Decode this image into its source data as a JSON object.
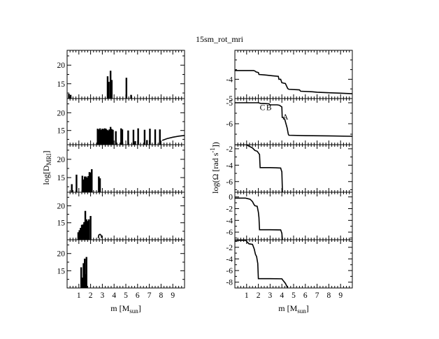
{
  "figure": {
    "title": "15sm_rot_mri",
    "xlabel": "m [M",
    "xlabel_sub": "sun",
    "xlabel_end": "]",
    "left_ylabel_main": "log[D",
    "left_ylabel_sub": "MRI",
    "left_ylabel_end": "]",
    "right_ylabel_main": "log(Ω [rad s",
    "right_ylabel_sup": "-1",
    "right_ylabel_end": "])"
  },
  "chart_data": [
    {
      "panel": "left-1",
      "type": "bar",
      "xlim": [
        0,
        10
      ],
      "ylim": [
        11,
        24
      ],
      "yticks": [
        15,
        20
      ],
      "xtick_labels": [],
      "spikes": [
        [
          0.15,
          12.3
        ],
        [
          0.3,
          12
        ],
        [
          3.45,
          17
        ],
        [
          3.55,
          15.5
        ],
        [
          3.7,
          18.5
        ],
        [
          3.8,
          16
        ],
        [
          5.05,
          16.6
        ],
        [
          5.45,
          12
        ]
      ]
    },
    {
      "panel": "left-2",
      "type": "bar",
      "xlim": [
        0,
        10
      ],
      "ylim": [
        11,
        24
      ],
      "yticks": [
        15,
        20
      ],
      "xtick_labels": [],
      "spikes": [
        [
          2.6,
          15.5
        ],
        [
          2.7,
          15.3
        ],
        [
          2.8,
          15.6
        ],
        [
          2.9,
          15.2
        ],
        [
          3.0,
          15.5
        ],
        [
          3.1,
          15.4
        ],
        [
          3.2,
          15.6
        ],
        [
          3.3,
          15.5
        ],
        [
          3.4,
          15.2
        ],
        [
          3.5,
          15
        ],
        [
          3.6,
          15.3
        ],
        [
          3.7,
          16
        ],
        [
          3.8,
          15.4
        ],
        [
          3.9,
          15.2
        ],
        [
          4.15,
          14.8
        ],
        [
          4.6,
          15.6
        ],
        [
          4.7,
          15.3
        ],
        [
          5.2,
          15
        ],
        [
          5.65,
          15.2
        ],
        [
          5.8,
          12
        ],
        [
          6.05,
          15.6
        ],
        [
          6.6,
          15.2
        ],
        [
          6.8,
          12.3
        ],
        [
          7.05,
          15.5
        ],
        [
          7.5,
          15.3
        ],
        [
          7.9,
          15.3
        ]
      ],
      "curve": [
        [
          8.1,
          12.2
        ],
        [
          8.5,
          12.7
        ],
        [
          9.0,
          13.1
        ],
        [
          9.5,
          13.4
        ],
        [
          10.0,
          13.6
        ]
      ]
    },
    {
      "panel": "left-3",
      "type": "bar",
      "xlim": [
        0,
        10
      ],
      "ylim": [
        11,
        24
      ],
      "yticks": [
        15,
        20
      ],
      "xtick_labels": [],
      "spikes": [
        [
          0.4,
          13.2
        ],
        [
          0.8,
          15.8
        ],
        [
          1.3,
          15.5
        ],
        [
          1.4,
          14.5
        ],
        [
          1.5,
          15.3
        ],
        [
          1.6,
          15.3
        ],
        [
          1.7,
          15
        ],
        [
          1.8,
          15.4
        ],
        [
          1.9,
          16.5
        ],
        [
          2.0,
          16.4
        ],
        [
          2.1,
          17.3
        ],
        [
          2.7,
          15.3
        ],
        [
          2.8,
          14.8
        ]
      ]
    },
    {
      "panel": "left-4",
      "type": "bar",
      "xlim": [
        0,
        10
      ],
      "ylim": [
        10,
        24
      ],
      "yticks": [
        15,
        20
      ],
      "xtick_labels": [],
      "spikes": [
        [
          0.95,
          12.2
        ],
        [
          1.05,
          12.8
        ],
        [
          1.15,
          13.5
        ],
        [
          1.25,
          14.4
        ],
        [
          1.35,
          14.5
        ],
        [
          1.45,
          15.2
        ],
        [
          1.55,
          18.5
        ],
        [
          1.65,
          16
        ],
        [
          1.75,
          15.5
        ],
        [
          1.85,
          16
        ],
        [
          2.0,
          17
        ]
      ],
      "curve": [
        [
          2.65,
          10.5
        ],
        [
          2.7,
          11.4
        ],
        [
          2.8,
          11.6
        ],
        [
          2.9,
          11.3
        ],
        [
          2.95,
          10.5
        ]
      ]
    },
    {
      "panel": "left-5",
      "type": "bar",
      "xlim": [
        0,
        10
      ],
      "ylim": [
        10,
        24
      ],
      "yticks": [
        15,
        20
      ],
      "xtick_labels": [
        "1",
        "2",
        "3",
        "4",
        "5",
        "6",
        "7",
        "8",
        "9"
      ],
      "spikes": [
        [
          1.2,
          16
        ],
        [
          1.3,
          13
        ],
        [
          1.4,
          17.2
        ],
        [
          1.5,
          18.5
        ],
        [
          1.55,
          14
        ],
        [
          1.65,
          19
        ]
      ]
    },
    {
      "panel": "right-1",
      "type": "line",
      "xlim": [
        0,
        10
      ],
      "ylim": [
        -5,
        -2.5
      ],
      "yticks": [
        -5,
        -4
      ],
      "xtick_labels": [],
      "points": [
        [
          0,
          -3.55
        ],
        [
          1.6,
          -3.55
        ],
        [
          1.7,
          -3.57
        ],
        [
          1.8,
          -3.62
        ],
        [
          2.0,
          -3.65
        ],
        [
          2.05,
          -3.75
        ],
        [
          2.6,
          -3.78
        ],
        [
          3.2,
          -3.82
        ],
        [
          3.7,
          -3.85
        ],
        [
          3.75,
          -4.0
        ],
        [
          3.9,
          -4.0
        ],
        [
          4.0,
          -4.18
        ],
        [
          4.3,
          -4.22
        ],
        [
          4.4,
          -4.35
        ],
        [
          4.5,
          -4.48
        ],
        [
          4.6,
          -4.52
        ],
        [
          5.5,
          -4.55
        ],
        [
          5.6,
          -4.62
        ],
        [
          6.6,
          -4.65
        ],
        [
          7.0,
          -4.67
        ],
        [
          8.0,
          -4.7
        ],
        [
          9.0,
          -4.72
        ],
        [
          10.0,
          -4.75
        ]
      ]
    },
    {
      "panel": "right-2",
      "type": "line",
      "xlim": [
        0,
        10
      ],
      "ylim": [
        -7,
        -4.8
      ],
      "yticks": [
        -6,
        -5
      ],
      "xtick_labels": [],
      "points": [
        [
          0,
          -5
        ],
        [
          2.0,
          -5
        ],
        [
          2.2,
          -5.03
        ],
        [
          2.9,
          -5.05
        ],
        [
          3.0,
          -5.1
        ],
        [
          3.6,
          -5.1
        ],
        [
          3.8,
          -5.12
        ],
        [
          4.0,
          -5.2
        ],
        [
          4.03,
          -5.7
        ],
        [
          4.1,
          -5.7
        ],
        [
          4.25,
          -5.8
        ],
        [
          4.35,
          -6.0
        ],
        [
          4.45,
          -6.2
        ],
        [
          4.55,
          -6.5
        ],
        [
          4.6,
          -6.55
        ],
        [
          6.0,
          -6.57
        ],
        [
          8.0,
          -6.58
        ],
        [
          10.0,
          -6.6
        ]
      ],
      "annotations": [
        {
          "text": "C",
          "x": 2.35,
          "y": -5.35
        },
        {
          "text": "B",
          "x": 2.9,
          "y": -5.35
        },
        {
          "text": "A",
          "x": 4.3,
          "y": -5.8
        }
      ]
    },
    {
      "panel": "right-3",
      "type": "line",
      "xlim": [
        0,
        10
      ],
      "ylim": [
        -7.3,
        -1.5
      ],
      "yticks": [
        -6,
        -4,
        -2
      ],
      "xtick_labels": [],
      "points": [
        [
          0,
          -1.5
        ],
        [
          1.0,
          -1.5
        ],
        [
          1.1,
          -1.6
        ],
        [
          1.3,
          -1.75
        ],
        [
          1.5,
          -1.9
        ],
        [
          1.7,
          -2.2
        ],
        [
          1.9,
          -2.3
        ],
        [
          2.0,
          -2.5
        ],
        [
          2.1,
          -2.7
        ],
        [
          2.15,
          -4.3
        ],
        [
          3.0,
          -4.3
        ],
        [
          3.5,
          -4.32
        ],
        [
          3.9,
          -4.35
        ],
        [
          3.95,
          -4.6
        ],
        [
          4.0,
          -4.8
        ],
        [
          4.05,
          -7.3
        ]
      ]
    },
    {
      "panel": "right-4",
      "type": "line",
      "xlim": [
        0,
        10
      ],
      "ylim": [
        -7.3,
        0.8
      ],
      "yticks": [
        -6,
        -4,
        -2,
        0
      ],
      "xtick_labels": [],
      "points": [
        [
          0,
          -0.2
        ],
        [
          0.9,
          -0.2
        ],
        [
          1.0,
          -0.25
        ],
        [
          1.3,
          -0.4
        ],
        [
          1.5,
          -0.8
        ],
        [
          1.6,
          -1.2
        ],
        [
          1.7,
          -1.5
        ],
        [
          1.9,
          -1.6
        ],
        [
          2.0,
          -2.6
        ],
        [
          2.05,
          -3.5
        ],
        [
          2.1,
          -5.6
        ],
        [
          3.0,
          -5.6
        ],
        [
          3.9,
          -5.62
        ],
        [
          3.95,
          -5.9
        ],
        [
          4.0,
          -6.2
        ],
        [
          4.05,
          -7.3
        ]
      ]
    },
    {
      "panel": "right-5",
      "type": "line",
      "xlim": [
        0,
        10
      ],
      "ylim": [
        -9,
        -0.7
      ],
      "yticks": [
        -8,
        -6,
        -4,
        -2
      ],
      "xtick_labels": [
        "1",
        "2",
        "3",
        "4",
        "5",
        "6",
        "7",
        "8",
        "9"
      ],
      "points": [
        [
          0,
          -0.8
        ],
        [
          0.95,
          -0.8
        ],
        [
          1.0,
          -1.0
        ],
        [
          1.2,
          -1.4
        ],
        [
          1.5,
          -1.5
        ],
        [
          1.65,
          -2.3
        ],
        [
          1.75,
          -3.2
        ],
        [
          1.85,
          -3.6
        ],
        [
          1.95,
          -4.8
        ],
        [
          2.0,
          -7.4
        ],
        [
          3.0,
          -7.4
        ],
        [
          4.0,
          -7.42
        ],
        [
          4.1,
          -7.7
        ],
        [
          4.3,
          -8.2
        ],
        [
          4.5,
          -9.0
        ]
      ]
    }
  ]
}
